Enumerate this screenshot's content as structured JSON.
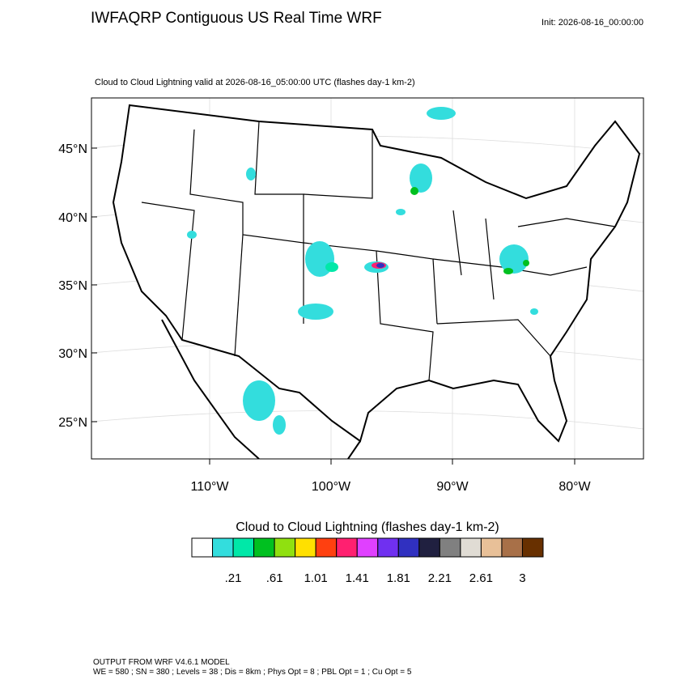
{
  "header": {
    "title": "IWFAQRP Contiguous US Real Time WRF",
    "init": "Init: 2026-08-16_00:00:00",
    "subtitle": "Cloud to Cloud Lightning valid at 2026-08-16_05:00:00 UTC   (flashes day-1 km-2)"
  },
  "map": {
    "lat_labels": [
      "45°N",
      "40°N",
      "35°N",
      "30°N",
      "25°N"
    ],
    "lon_labels": [
      "110°W",
      "100°W",
      "90°W",
      "80°W"
    ]
  },
  "colorbar": {
    "title": "Cloud to Cloud Lightning  (flashes day-1 km-2)",
    "colors": [
      "#ffffff",
      "#33dddd",
      "#00e8a8",
      "#00c020",
      "#90e010",
      "#ffe000",
      "#ff4010",
      "#ff2070",
      "#e040ff",
      "#7030f0",
      "#3030c0",
      "#202040",
      "#808080",
      "#e0dcd4",
      "#e8c098",
      "#a87048",
      "#683000"
    ],
    "labels": [
      ".21",
      ".61",
      "1.01",
      "1.41",
      "1.81",
      "2.21",
      "2.61",
      "3"
    ]
  },
  "footer": {
    "line1": "OUTPUT FROM WRF V4.6.1 MODEL",
    "line2": "WE = 580 ; SN = 380 ; Levels = 38 ; Dis = 8km ; Phys Opt = 8 ; PBL Opt = 1 ; Cu Opt = 5"
  }
}
